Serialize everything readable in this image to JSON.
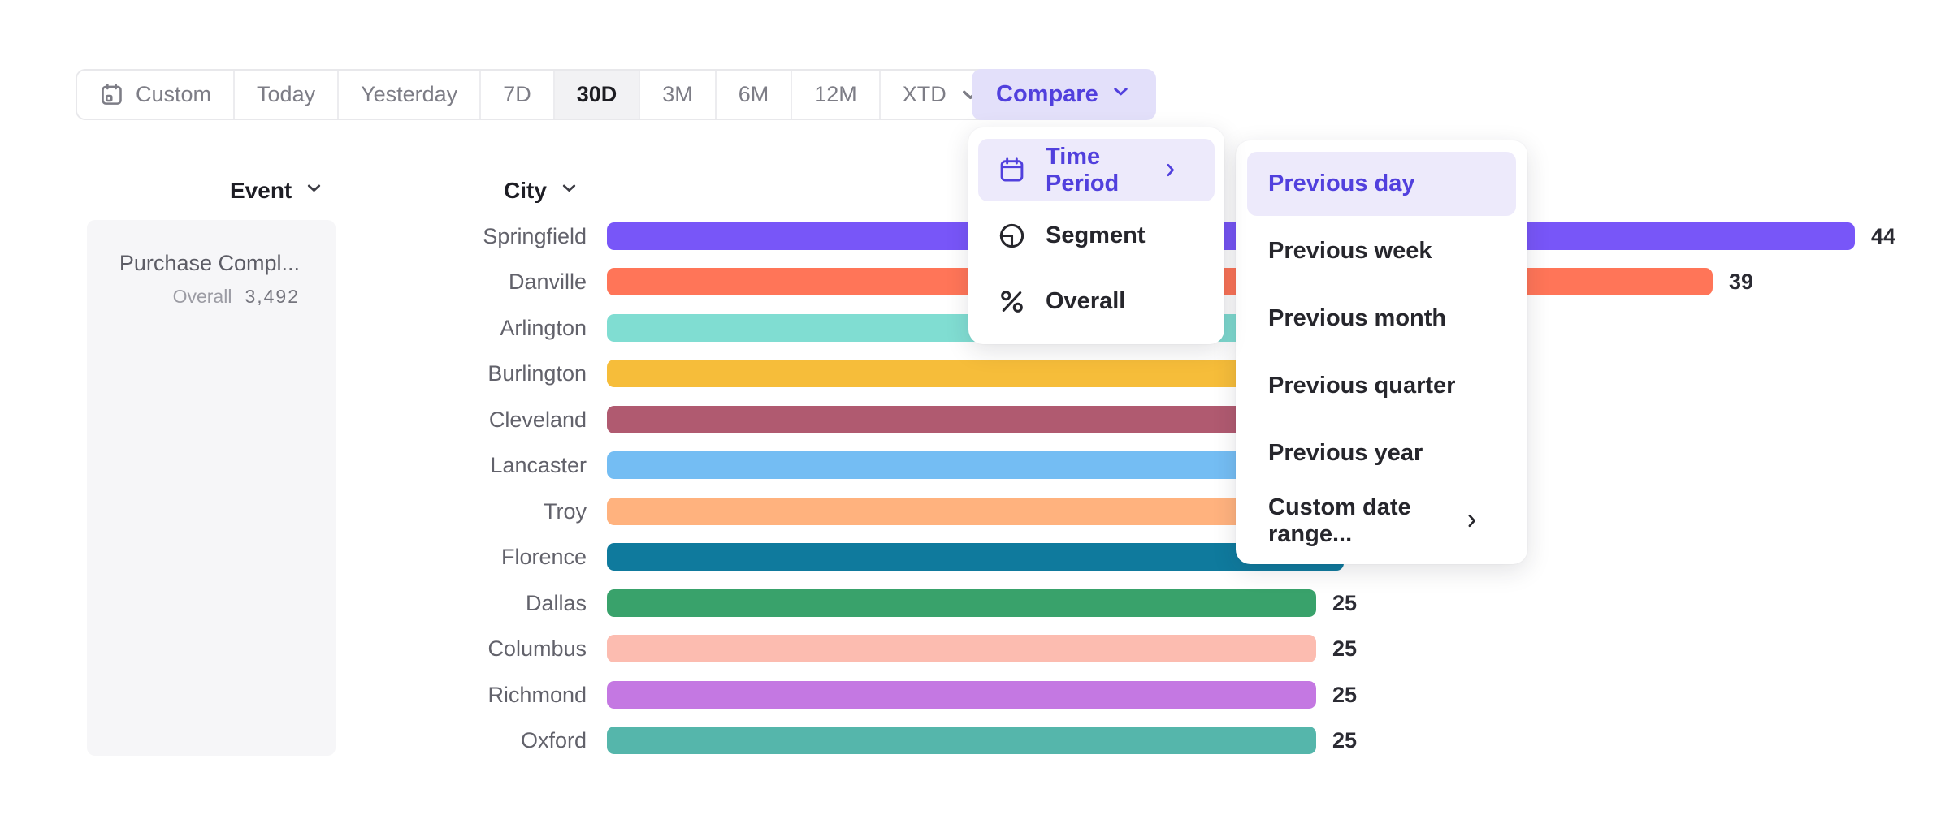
{
  "colors": {
    "accent_text": "#5140dd",
    "accent_item_bg": "#edeafb",
    "compare_button_bg": "#e3e0fa",
    "toolbar_selected_bg": "#f2f2f4",
    "toolbar_text": "#7d7d86",
    "menu_text": "#26262c",
    "city_label_text": "#62626b",
    "value_label_text": "#2b2b33",
    "event_panel_bg": "#f6f6f8"
  },
  "toolbar": {
    "buttons": [
      {
        "label": "Custom",
        "icon": "calendar-icon"
      },
      {
        "label": "Today"
      },
      {
        "label": "Yesterday"
      },
      {
        "label": "7D"
      },
      {
        "label": "30D",
        "selected": true
      },
      {
        "label": "3M"
      },
      {
        "label": "6M"
      },
      {
        "label": "12M"
      },
      {
        "label": "XTD",
        "trailing_icon": "chevron-down-icon"
      }
    ]
  },
  "compare_button": {
    "label": "Compare",
    "trailing_icon": "chevron-down-icon"
  },
  "compare_menu": {
    "items": [
      {
        "label": "Time Period",
        "icon": "calendar-icon",
        "active": true,
        "trailing_icon": "chevron-right-icon"
      },
      {
        "label": "Segment",
        "icon": "segment-icon"
      },
      {
        "label": "Overall",
        "icon": "percent-icon"
      }
    ]
  },
  "time_period_submenu": {
    "items": [
      {
        "label": "Previous day",
        "active": true
      },
      {
        "label": "Previous week"
      },
      {
        "label": "Previous month"
      },
      {
        "label": "Previous quarter"
      },
      {
        "label": "Previous year"
      },
      {
        "label": "Custom date range...",
        "trailing_icon": "chevron-right-icon"
      }
    ]
  },
  "event_panel": {
    "header": "Event",
    "event_name": "Purchase Compl...",
    "overall_label": "Overall",
    "overall_value": "3,492"
  },
  "chart_data": {
    "type": "bar",
    "orientation": "horizontal",
    "group_by_header": "City",
    "value_axis_origin": 0,
    "note": "bars for Arlington through Florence end underneath the open menus; their numeric labels are not visible, values for them are estimates from bar extent",
    "bars": [
      {
        "city": "Springfield",
        "value": 44,
        "value_label": "44",
        "color": "#7856f8"
      },
      {
        "city": "Danville",
        "value": 39,
        "value_label": "39",
        "color": "#ff7558"
      },
      {
        "city": "Arlington",
        "value": 32,
        "value_label": "",
        "value_hidden_behind_menu": true,
        "color": "#80ddd2"
      },
      {
        "city": "Burlington",
        "value": 31,
        "value_label": "",
        "value_hidden_behind_menu": true,
        "color": "#f6bd3a"
      },
      {
        "city": "Cleveland",
        "value": 30,
        "value_label": "",
        "value_hidden_behind_menu": true,
        "color": "#b05a70"
      },
      {
        "city": "Lancaster",
        "value": 29,
        "value_label": "",
        "value_hidden_behind_menu": true,
        "color": "#74bdf3"
      },
      {
        "city": "Troy",
        "value": 27,
        "value_label": "",
        "value_hidden_behind_menu": true,
        "color": "#ffb27e"
      },
      {
        "city": "Florence",
        "value": 26,
        "value_label": "",
        "value_hidden_behind_menu": true,
        "color": "#0f7a9d"
      },
      {
        "city": "Dallas",
        "value": 25,
        "value_label": "25",
        "color": "#39a26b"
      },
      {
        "city": "Columbus",
        "value": 25,
        "value_label": "25",
        "color": "#fcbcb0"
      },
      {
        "city": "Richmond",
        "value": 25,
        "value_label": "25",
        "color": "#c478e2"
      },
      {
        "city": "Oxford",
        "value": 25,
        "value_label": "25",
        "color": "#55b6ab"
      }
    ]
  }
}
